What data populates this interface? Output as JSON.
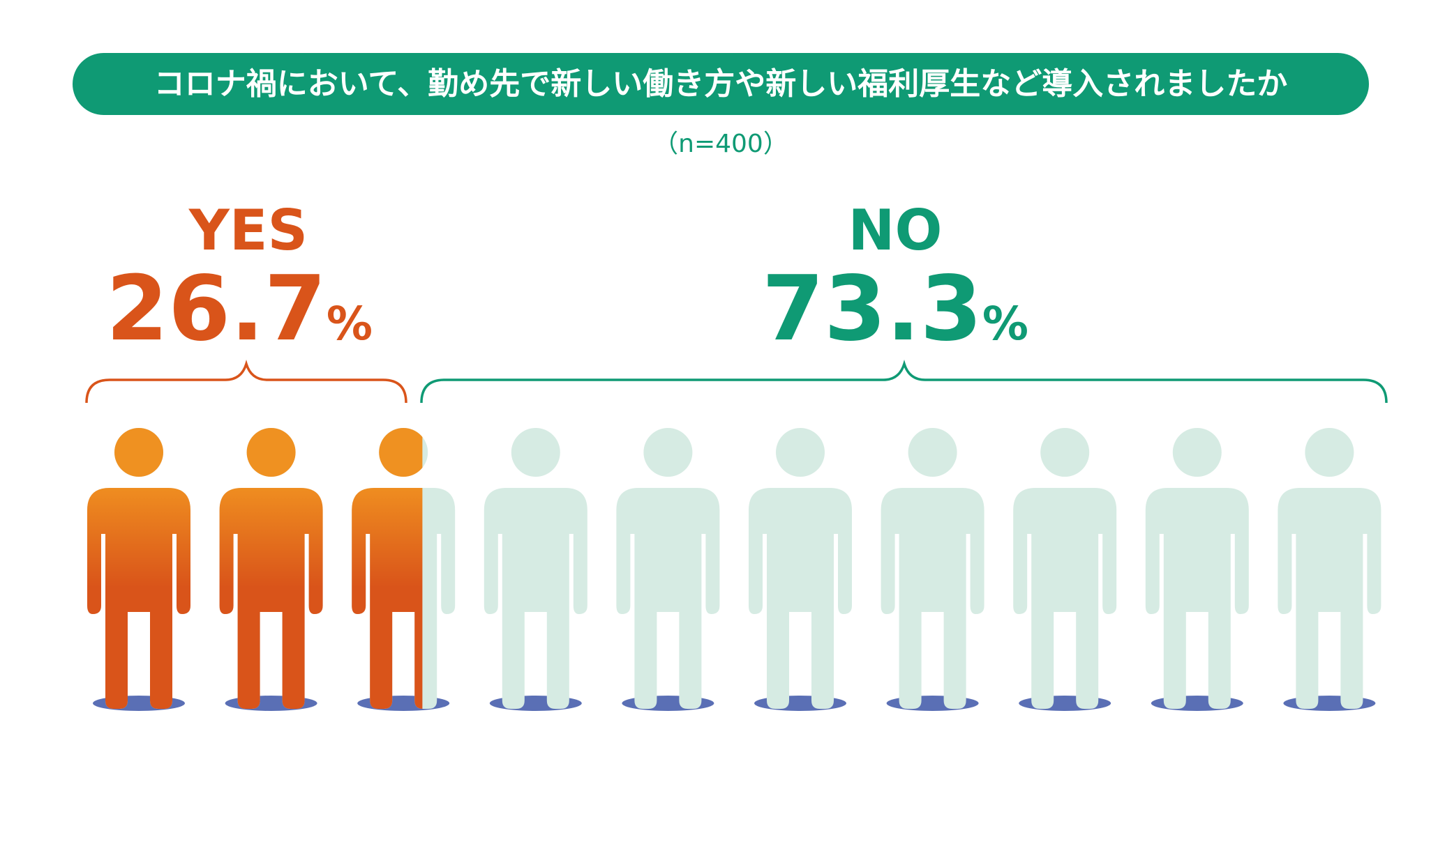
{
  "chart_data": {
    "type": "pictogram",
    "title": "コロナ禍において、勤め先で新しい働き方や新しい福利厚生など導入されましたか",
    "subtitle": "（n=400）",
    "total_icons": 10,
    "categories": [
      "YES",
      "NO"
    ],
    "values": [
      26.7,
      73.3
    ],
    "value_labels": [
      "26.7",
      "73.3"
    ],
    "unit": "%",
    "colors": {
      "title_bg": "#0f9a74",
      "title_text": "#ffffff",
      "subtitle": "#0f9a74",
      "yes": "#d9541a",
      "yes_head": "#ef9121",
      "yes_body_top": "#ef8d20",
      "no": "#0f9a74",
      "no_figure": "#d6ebe3",
      "shadow": "#5a6fb5"
    }
  }
}
